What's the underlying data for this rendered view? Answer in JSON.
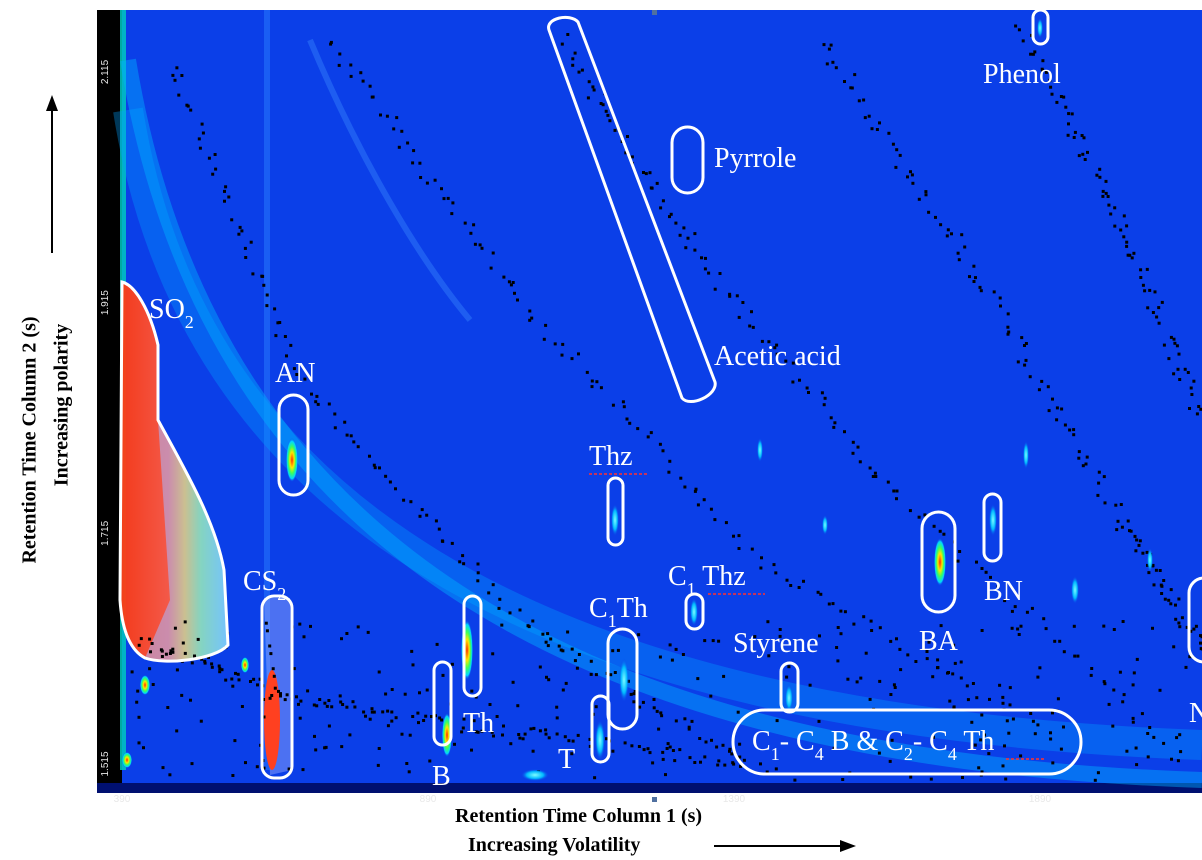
{
  "chart_data": {
    "type": "heatmap",
    "xlabel": "Retention Time Column 1 (s)",
    "xlabel_sub": "Increasing Volatility",
    "ylabel": "Retention Time Column 2 (s)",
    "ylabel_sub": "Increasing polarity",
    "xlim": [
      390,
      2050
    ],
    "ylim": [
      1.515,
      2.215
    ],
    "x_ticks": [
      "390",
      "890",
      "1390",
      "1890"
    ],
    "y_ticks": [
      "1.515",
      "1.715",
      "1.915",
      "2.115"
    ],
    "x_tick_values": [
      390,
      890,
      1390,
      1890
    ],
    "y_tick_values": [
      1.515,
      1.715,
      1.915,
      2.115
    ],
    "colormap": [
      "#0b3fe8",
      "#00d8ff",
      "#3cff5a",
      "#ffe600",
      "#ff2a00"
    ],
    "annotations": [
      {
        "label": "Phenol",
        "rt1": 1890,
        "rt2": 2.2
      },
      {
        "label": "Pyrrole",
        "rt1": 1345,
        "rt2": 2.08
      },
      {
        "label": "Acetic acid",
        "rt1": 1230,
        "rt2": 2.0
      },
      {
        "label": "SO2",
        "rt1": 420,
        "rt2": 1.75
      },
      {
        "label": "AN",
        "rt1": 655,
        "rt2": 1.815
      },
      {
        "label": "CS2",
        "rt1": 645,
        "rt2": 1.56
      },
      {
        "label": "Thz",
        "rt1": 1235,
        "rt2": 1.73
      },
      {
        "label": "C1 Thz",
        "rt1": 1345,
        "rt2": 1.655
      },
      {
        "label": "C1Th",
        "rt1": 1250,
        "rt2": 1.6
      },
      {
        "label": "Th",
        "rt1": 937,
        "rt2": 1.63
      },
      {
        "label": "B",
        "rt1": 890,
        "rt2": 1.58
      },
      {
        "label": "T",
        "rt1": 1200,
        "rt2": 1.56
      },
      {
        "label": "Styrene",
        "rt1": 1480,
        "rt2": 1.59
      },
      {
        "label": "BA",
        "rt1": 1720,
        "rt2": 1.68
      },
      {
        "label": "BN",
        "rt1": 1820,
        "rt2": 1.73
      },
      {
        "label": "C1-C4 B & C2-C4 Th",
        "rt1": 1680,
        "rt2": 1.55
      },
      {
        "label": "N",
        "rt1": 2040,
        "rt2": 1.62
      }
    ],
    "grid": false,
    "legend": "none"
  }
}
